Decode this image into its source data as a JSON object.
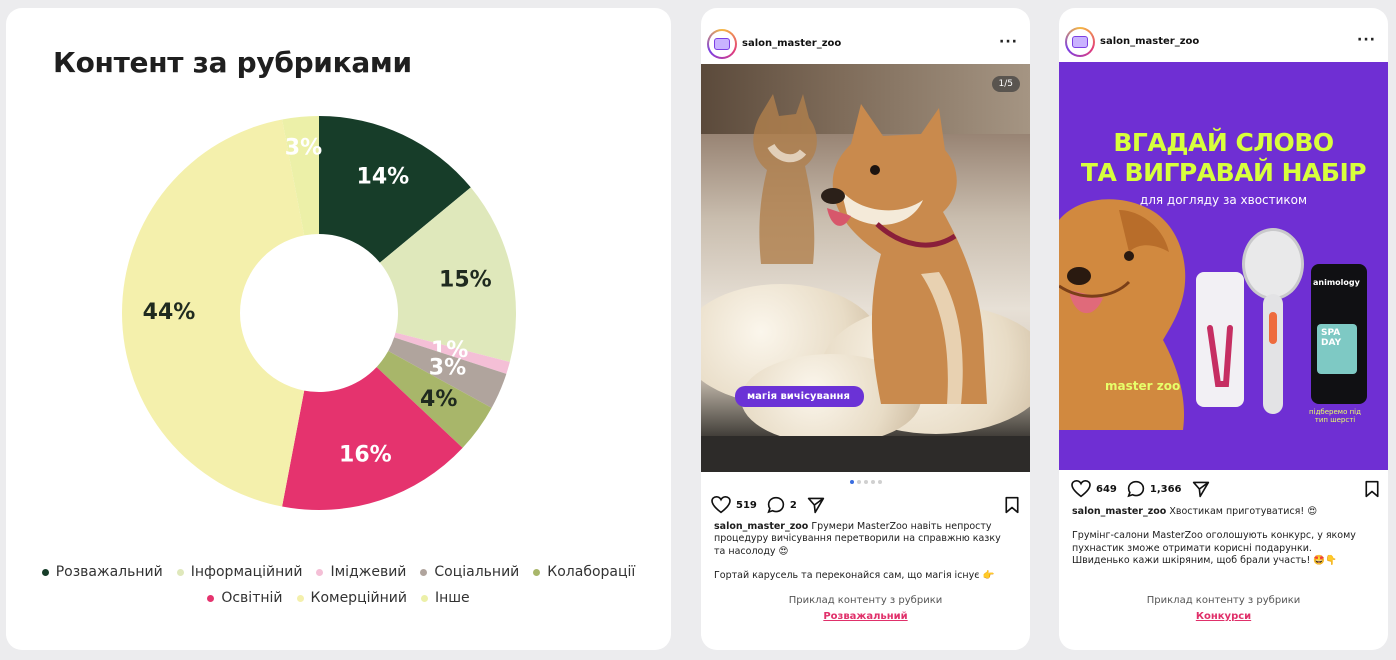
{
  "chart_data": {
    "type": "pie",
    "variant": "donut",
    "title": "Контент за рубриками",
    "legend_position": "bottom",
    "series": [
      {
        "name": "Розважальний",
        "value": 14,
        "label": "14%",
        "color": "#173d29"
      },
      {
        "name": "Інформаційний",
        "value": 15,
        "label": "15%",
        "color": "#dfe8bb"
      },
      {
        "name": "Іміджевий",
        "value": 1,
        "label": "1%",
        "color": "#f4bfd6"
      },
      {
        "name": "Соціальний",
        "value": 3,
        "label": "3%",
        "color": "#b0a49d"
      },
      {
        "name": "Колаборації",
        "value": 4,
        "label": "4%",
        "color": "#a8b66a"
      },
      {
        "name": "Освітній",
        "value": 16,
        "label": "16%",
        "color": "#e5336e"
      },
      {
        "name": "Комерційний",
        "value": 44,
        "label": "44%",
        "color": "#f4f0ac"
      },
      {
        "name": "Інше",
        "value": 3,
        "label": "3%",
        "color": "#ecf0a8"
      }
    ]
  },
  "post1": {
    "username": "salon_master_zoo",
    "more": "···",
    "counter": "1/5",
    "badge": "магія вичісування",
    "likes": "519",
    "comments": "2",
    "caption_user": "salon_master_zoo",
    "caption_text": "Грумери MasterZoo навіть непросту процедуру вичісування перетворили на справжню казку та насолоду 😍",
    "caption_text2": "Гортай карусель та переконайся сам, що магія існує 👉",
    "footer_label": "Приклад контенту з рубрики",
    "footer_link": "Розважальний"
  },
  "post2": {
    "username": "salon_master_zoo",
    "more": "···",
    "promo_title_line1": "ВГАДАЙ СЛОВО",
    "promo_title_line2": "ТА ВИГРАВАЙ НАБІР",
    "promo_sub": "для догляду за хвостиком",
    "brand": "master zoo",
    "product_text": "animology",
    "product_text2": "SPA DAY",
    "promo_note": "підберемо під тип шерсті",
    "likes": "649",
    "comments": "1,366",
    "caption_user": "salon_master_zoo",
    "caption_text": "Хвостикам приготуватися! 😍",
    "caption_text2": "Грумінг-салони MasterZoo оголошують конкурс, у якому пухнастик зможе отримати корисні подарунки. Швиденько кажи шкіряним, щоб брали участь! 🤩👇",
    "footer_label": "Приклад контенту з рубрики",
    "footer_link": "Конкурси"
  }
}
